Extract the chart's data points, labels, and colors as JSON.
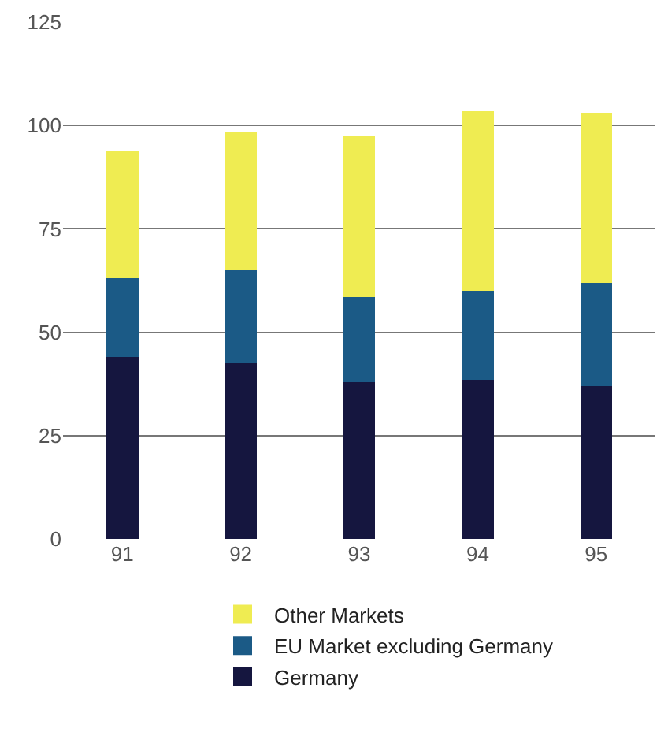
{
  "chart_data": {
    "type": "bar",
    "stacked": true,
    "categories": [
      "91",
      "92",
      "93",
      "94",
      "95"
    ],
    "series": [
      {
        "name": "Germany",
        "color": "#15163f",
        "values": [
          44,
          42.5,
          38,
          38.5,
          37
        ]
      },
      {
        "name": "EU Market excluding Germany",
        "color": "#1b5a86",
        "values": [
          19,
          22.5,
          20.5,
          21.5,
          25
        ]
      },
      {
        "name": "Other Markets",
        "color": "#efec52",
        "values": [
          31,
          33.5,
          39,
          43.5,
          41
        ]
      }
    ],
    "ylim": [
      0,
      125
    ],
    "yticks": [
      0,
      25,
      50,
      75,
      100,
      125
    ],
    "grid": "y",
    "legend": "bottom"
  }
}
